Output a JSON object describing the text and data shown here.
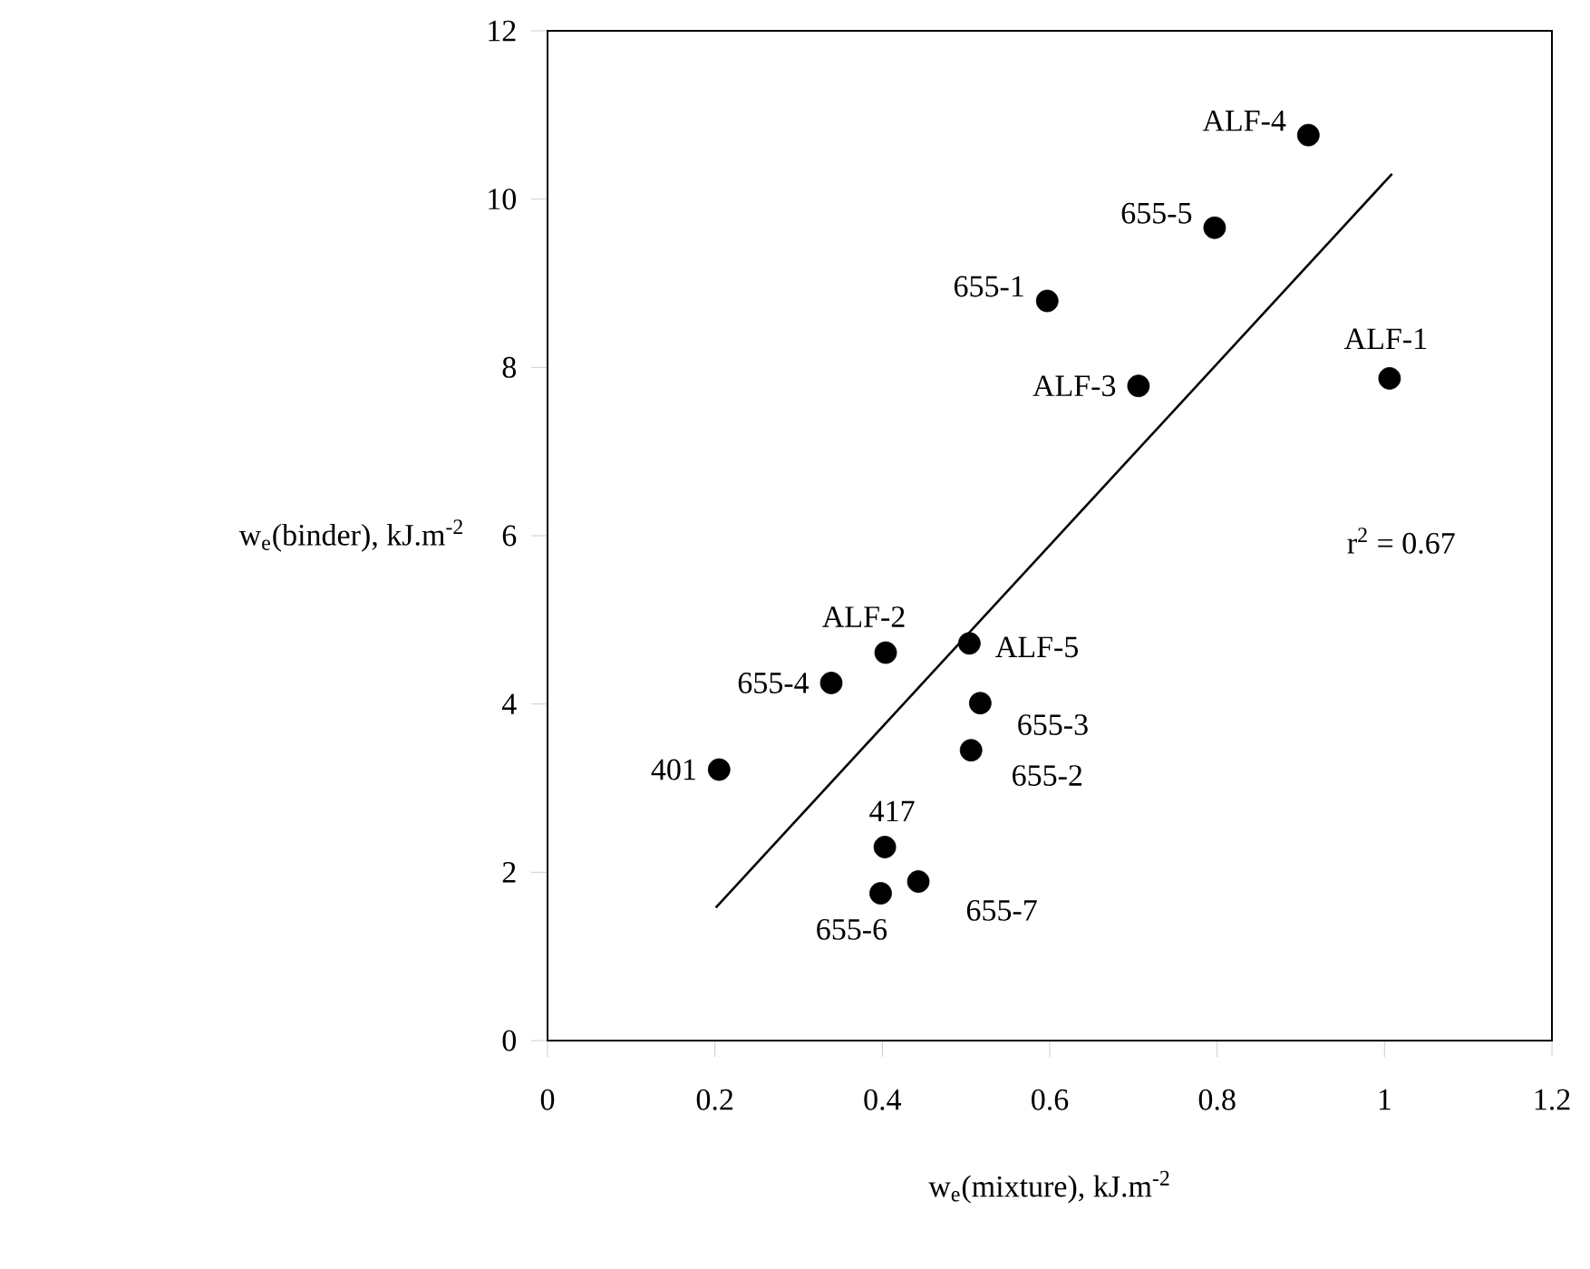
{
  "chart_data": {
    "type": "scatter",
    "xlabel": "w$_{e}$(mixture), kJ.m$^{-2}$",
    "ylabel": "w$_{e}$(binder), kJ.m$^{-2}$",
    "xlim": [
      0,
      1.2
    ],
    "ylim": [
      0,
      12
    ],
    "xticks": [
      0,
      0.2,
      0.4,
      0.6,
      0.8,
      1,
      1.2
    ],
    "yticks": [
      0,
      2,
      4,
      6,
      8,
      10,
      12
    ],
    "marker": "circle",
    "series": [
      {
        "color": "#000000",
        "x": [
          0.909,
          0.797,
          0.597,
          0.706,
          1.006,
          0.404,
          0.504,
          0.339,
          0.517,
          0.506,
          0.205,
          0.403,
          0.443,
          0.398
        ],
        "values": [
          10.76,
          9.66,
          8.79,
          7.78,
          7.87,
          4.61,
          4.72,
          4.25,
          4.01,
          3.45,
          3.22,
          2.3,
          1.89,
          1.75
        ]
      },
      {
        "type": "line",
        "marker": "none",
        "color": "#000000",
        "x": [
          0.201,
          1.009
        ],
        "values": [
          1.58,
          10.3
        ]
      }
    ],
    "annotations": [
      {
        "text": "ALF-4",
        "x": 0.909,
        "y": 10.76
      },
      {
        "text": "655-5",
        "x": 0.797,
        "y": 9.66
      },
      {
        "text": "655-1",
        "x": 0.597,
        "y": 8.79
      },
      {
        "text": "ALF-3",
        "x": 0.706,
        "y": 7.78
      },
      {
        "text": "ALF-1",
        "x": 1.006,
        "y": 7.87
      },
      {
        "text": "ALF-2",
        "x": 0.404,
        "y": 4.61
      },
      {
        "text": "ALF-5",
        "x": 0.504,
        "y": 4.72
      },
      {
        "text": "655-4",
        "x": 0.339,
        "y": 4.25
      },
      {
        "text": "655-3",
        "x": 0.517,
        "y": 4.01
      },
      {
        "text": "655-2",
        "x": 0.506,
        "y": 3.45
      },
      {
        "text": "401",
        "x": 0.205,
        "y": 3.22
      },
      {
        "text": "417",
        "x": 0.403,
        "y": 2.3
      },
      {
        "text": "655-7",
        "x": 0.443,
        "y": 1.89
      },
      {
        "text": "655-6",
        "x": 0.398,
        "y": 1.75
      },
      "r$^{2}$ = 0.67"
    ]
  }
}
